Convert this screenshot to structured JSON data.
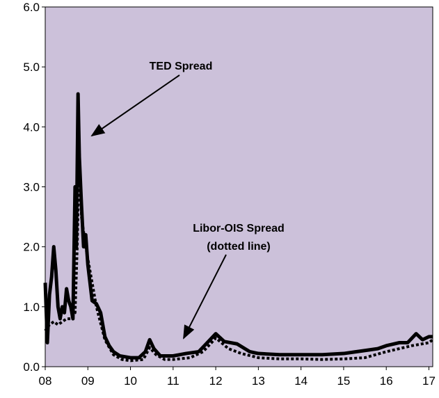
{
  "chart_data": {
    "type": "line",
    "annotations": [
      "TED Spread",
      "Libor-OIS Spread",
      "(dotted line)"
    ],
    "xlim": [
      2008,
      2017.09
    ],
    "ylim": [
      0,
      6
    ],
    "xticks": [
      {
        "value": 2008,
        "label": "08"
      },
      {
        "value": 2009,
        "label": "09"
      },
      {
        "value": 2010,
        "label": "10"
      },
      {
        "value": 2011,
        "label": "11"
      },
      {
        "value": 2012,
        "label": "12"
      },
      {
        "value": 2013,
        "label": "13"
      },
      {
        "value": 2014,
        "label": "14"
      },
      {
        "value": 2015,
        "label": "15"
      },
      {
        "value": 2016,
        "label": "16"
      },
      {
        "value": 2017,
        "label": "17"
      }
    ],
    "yticks": [
      {
        "value": 0,
        "label": "0.0"
      },
      {
        "value": 1,
        "label": "1.0"
      },
      {
        "value": 2,
        "label": "2.0"
      },
      {
        "value": 3,
        "label": "3.0"
      },
      {
        "value": 4,
        "label": "4.0"
      },
      {
        "value": 5,
        "label": "5.0"
      },
      {
        "value": 6,
        "label": "6.0"
      }
    ],
    "background": "#ccc1da",
    "series": [
      {
        "name": "TED Spread",
        "color": "#000000",
        "style": "solid",
        "x": [
          2008.0,
          2008.05,
          2008.1,
          2008.15,
          2008.2,
          2008.25,
          2008.3,
          2008.35,
          2008.4,
          2008.45,
          2008.5,
          2008.55,
          2008.6,
          2008.65,
          2008.7,
          2008.73,
          2008.77,
          2008.8,
          2008.85,
          2008.9,
          2008.95,
          2009.0,
          2009.1,
          2009.2,
          2009.3,
          2009.4,
          2009.5,
          2009.6,
          2009.75,
          2010.0,
          2010.2,
          2010.35,
          2010.45,
          2010.55,
          2010.7,
          2011.0,
          2011.3,
          2011.6,
          2011.8,
          2012.0,
          2012.2,
          2012.5,
          2012.8,
          2013.0,
          2013.5,
          2014.0,
          2014.5,
          2015.0,
          2015.5,
          2015.8,
          2016.0,
          2016.3,
          2016.5,
          2016.7,
          2016.85,
          2017.0,
          2017.09
        ],
        "values": [
          1.4,
          0.4,
          1.2,
          1.5,
          2.0,
          1.6,
          1.0,
          0.8,
          1.0,
          0.9,
          1.3,
          1.1,
          1.0,
          0.8,
          3.0,
          2.0,
          4.55,
          3.5,
          2.7,
          2.0,
          2.2,
          1.7,
          1.1,
          1.05,
          0.9,
          0.5,
          0.35,
          0.25,
          0.18,
          0.15,
          0.15,
          0.25,
          0.45,
          0.3,
          0.18,
          0.18,
          0.22,
          0.25,
          0.4,
          0.55,
          0.42,
          0.38,
          0.25,
          0.22,
          0.2,
          0.2,
          0.2,
          0.22,
          0.27,
          0.3,
          0.35,
          0.4,
          0.4,
          0.55,
          0.45,
          0.5,
          0.5
        ]
      },
      {
        "name": "Libor-OIS Spread",
        "color": "#000000",
        "style": "dotted",
        "x": [
          2008.0,
          2008.1,
          2008.2,
          2008.3,
          2008.4,
          2008.5,
          2008.6,
          2008.7,
          2008.75,
          2008.8,
          2008.85,
          2008.95,
          2009.0,
          2009.2,
          2009.4,
          2009.6,
          2009.8,
          2010.0,
          2010.3,
          2010.45,
          2010.6,
          2010.8,
          2011.0,
          2011.4,
          2011.7,
          2011.9,
          2012.0,
          2012.3,
          2012.6,
          2013.0,
          2013.5,
          2014.0,
          2014.5,
          2015.0,
          2015.5,
          2016.0,
          2016.3,
          2016.6,
          2017.0,
          2017.09
        ],
        "values": [
          0.6,
          0.7,
          0.75,
          0.7,
          0.75,
          0.8,
          0.8,
          0.9,
          2.0,
          3.6,
          2.5,
          2.0,
          1.8,
          1.0,
          0.45,
          0.2,
          0.12,
          0.1,
          0.12,
          0.32,
          0.2,
          0.12,
          0.12,
          0.15,
          0.25,
          0.4,
          0.48,
          0.3,
          0.22,
          0.15,
          0.13,
          0.13,
          0.12,
          0.13,
          0.15,
          0.25,
          0.3,
          0.35,
          0.4,
          0.45
        ]
      }
    ]
  }
}
